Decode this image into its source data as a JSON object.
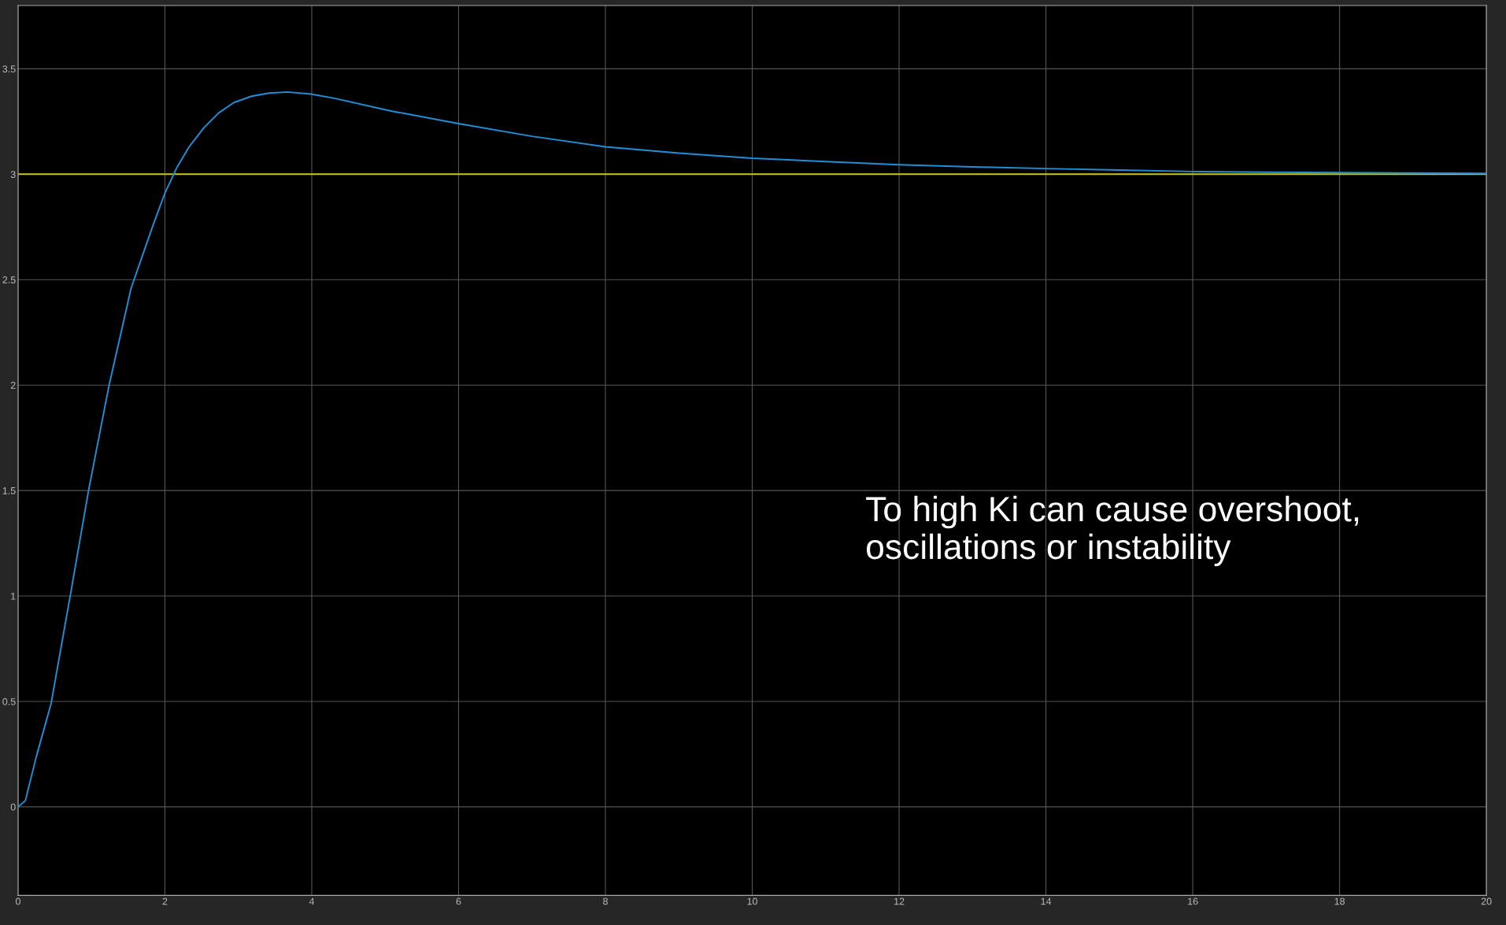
{
  "chart_data": {
    "type": "line",
    "series": [
      {
        "color": "#1f8fd8",
        "x": [
          0,
          0.1,
          0.25,
          0.45,
          0.71,
          0.96,
          1.24,
          1.54,
          1.84,
          2.0,
          2.16,
          2.33,
          2.53,
          2.73,
          2.94,
          3.18,
          3.42,
          3.67,
          3.99,
          4.31,
          5.08,
          6,
          7,
          8,
          9,
          10,
          11,
          12,
          13,
          14,
          15,
          16,
          17,
          18,
          19,
          20
        ],
        "values": [
          0,
          0.03,
          0.24,
          0.49,
          1.0,
          1.5,
          2.0,
          2.46,
          2.76,
          2.91,
          3.03,
          3.13,
          3.22,
          3.29,
          3.34,
          3.37,
          3.385,
          3.39,
          3.38,
          3.36,
          3.3,
          3.24,
          3.18,
          3.13,
          3.1,
          3.076,
          3.06,
          3.045,
          3.035,
          3.027,
          3.02,
          3.013,
          3.01,
          3.008,
          3.006,
          3.004
        ]
      },
      {
        "color": "#c8c800",
        "x": [
          0,
          20
        ],
        "values": [
          3,
          3
        ]
      }
    ],
    "xlim": [
      0,
      20
    ],
    "ylim": [
      -0.42,
      3.8
    ],
    "xticks": [
      0,
      2,
      4,
      6,
      8,
      10,
      12,
      14,
      16,
      18,
      20
    ],
    "yticks": [
      0,
      0.5,
      1,
      1.5,
      2,
      2.5,
      3,
      3.5
    ],
    "grid": true,
    "legend": false,
    "marker": "none",
    "line_style": "solid",
    "annotations": [
      "To high Ki can cause overshoot,\noscillations or instability"
    ]
  }
}
